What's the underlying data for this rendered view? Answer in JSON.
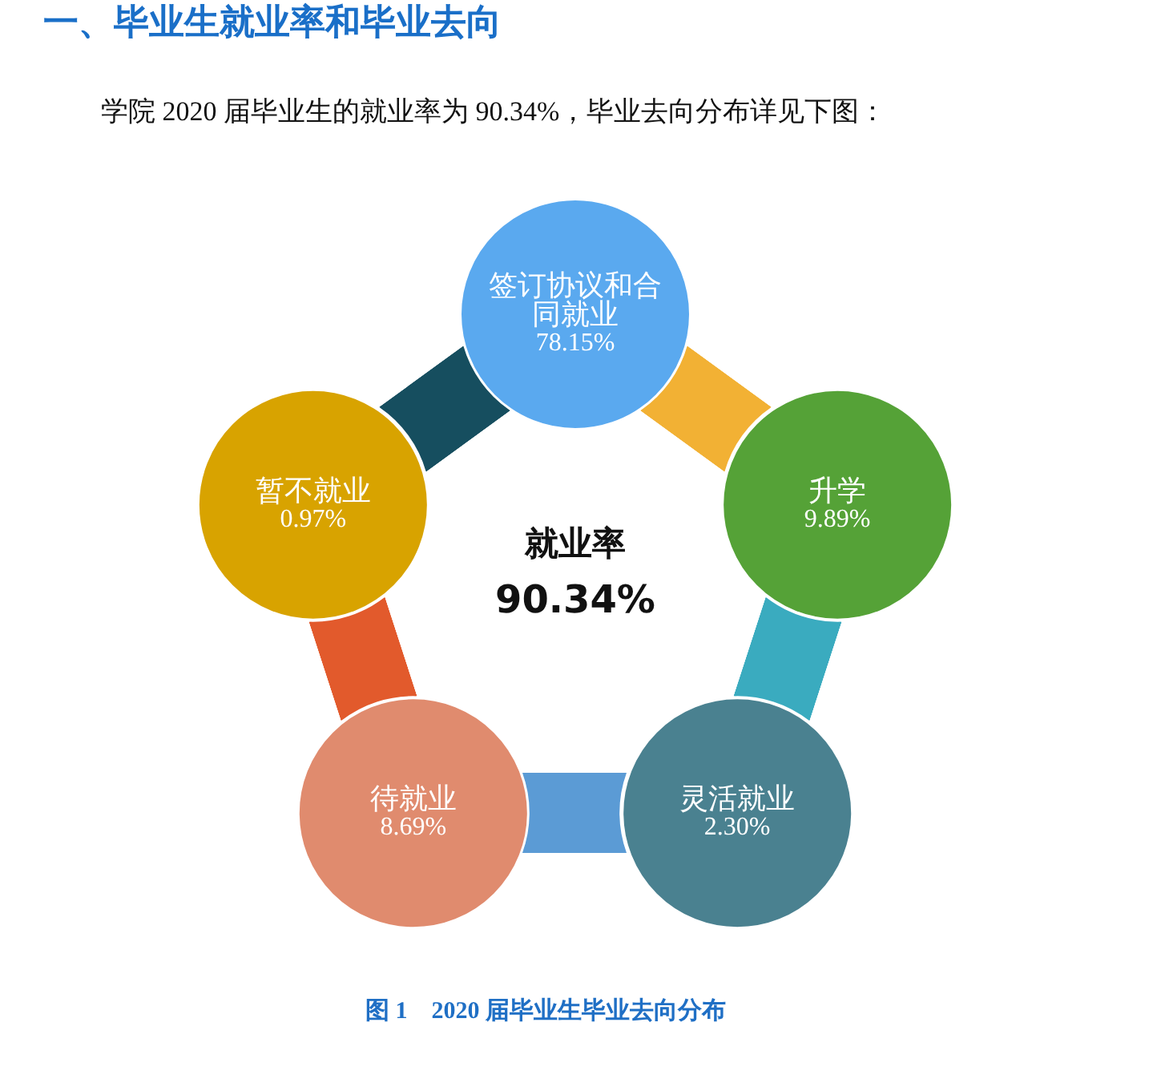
{
  "chart_data": {
    "type": "other",
    "title": "一、毕业生就业率和毕业去向",
    "subtitle": "学院 2020 届毕业生的就业率为 90.34%，毕业去向分布详见下图：",
    "categories": [
      "签订协议和合同就业",
      "升学",
      "灵活就业",
      "待就业",
      "暂不就业"
    ],
    "values": [
      78.15,
      9.89,
      2.3,
      8.69,
      0.97
    ],
    "value_labels": [
      "78.15%",
      "9.89%",
      "2.30%",
      "8.69%",
      "0.97%"
    ],
    "colors": [
      "#5aa9ef",
      "#55a237",
      "#4a8190",
      "#e08b6e",
      "#d8a300"
    ],
    "annotations": [
      "就业率",
      "90.34%",
      "图 1　2020 届毕业生毕业去向分布"
    ]
  }
}
